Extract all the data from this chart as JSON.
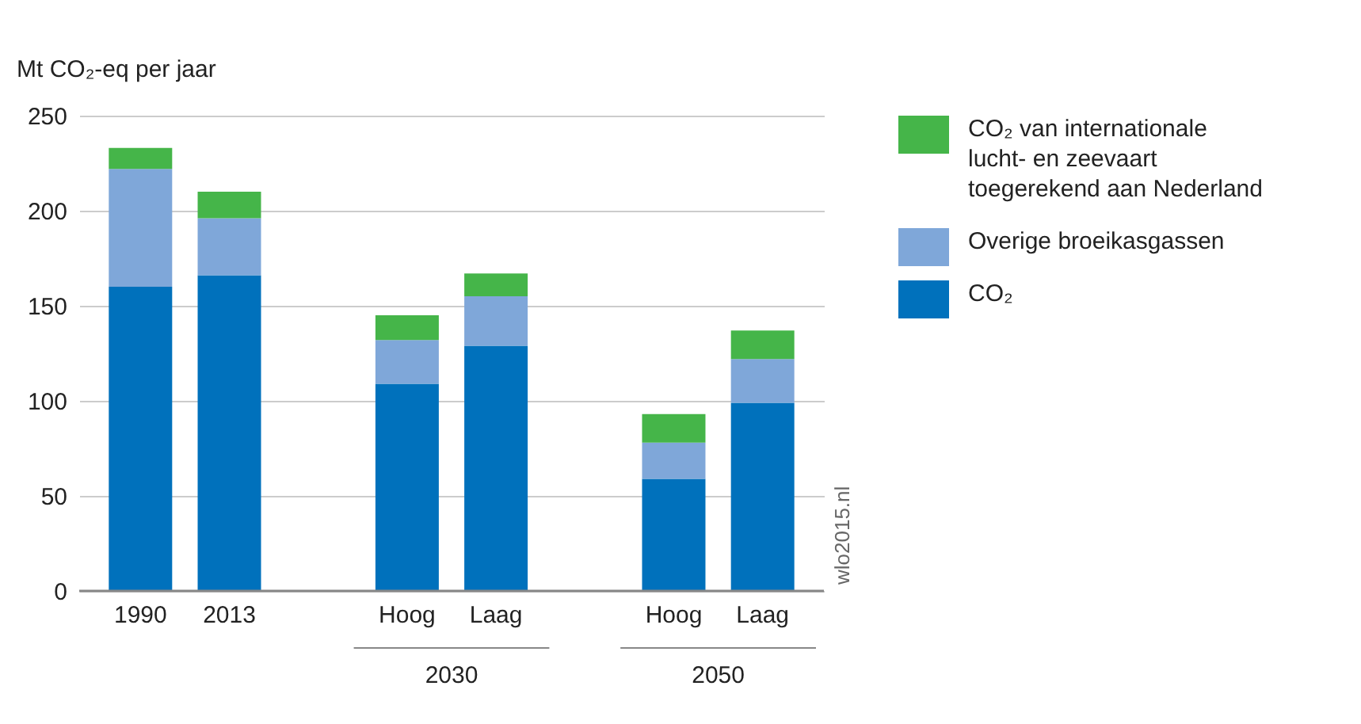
{
  "chart_data": {
    "type": "bar",
    "stacked": true,
    "ylabel": "Mt CO₂-eq per jaar",
    "categories": [
      "1990",
      "2013",
      "Hoog",
      "Laag",
      "Hoog",
      "Laag"
    ],
    "series": [
      {
        "name": "CO₂",
        "color": "#0071bc",
        "values": [
          160,
          166,
          109,
          129,
          59,
          99
        ]
      },
      {
        "name": "Overige broeikasgassen",
        "color": "#7fa7d9",
        "values": [
          62,
          30,
          23,
          26,
          19,
          23
        ]
      },
      {
        "name": "CO₂ van internationale lucht- en zeevaart toegerekend aan Nederland",
        "color": "#45b549",
        "values": [
          11,
          14,
          13,
          12,
          15,
          15
        ]
      }
    ],
    "ylim": [
      0,
      250
    ],
    "yticks": [
      0,
      50,
      100,
      150,
      200,
      250
    ],
    "grid": "y",
    "legend": "top right",
    "annotations": [
      "2030",
      "2050",
      "wlo2015.nl"
    ]
  }
}
